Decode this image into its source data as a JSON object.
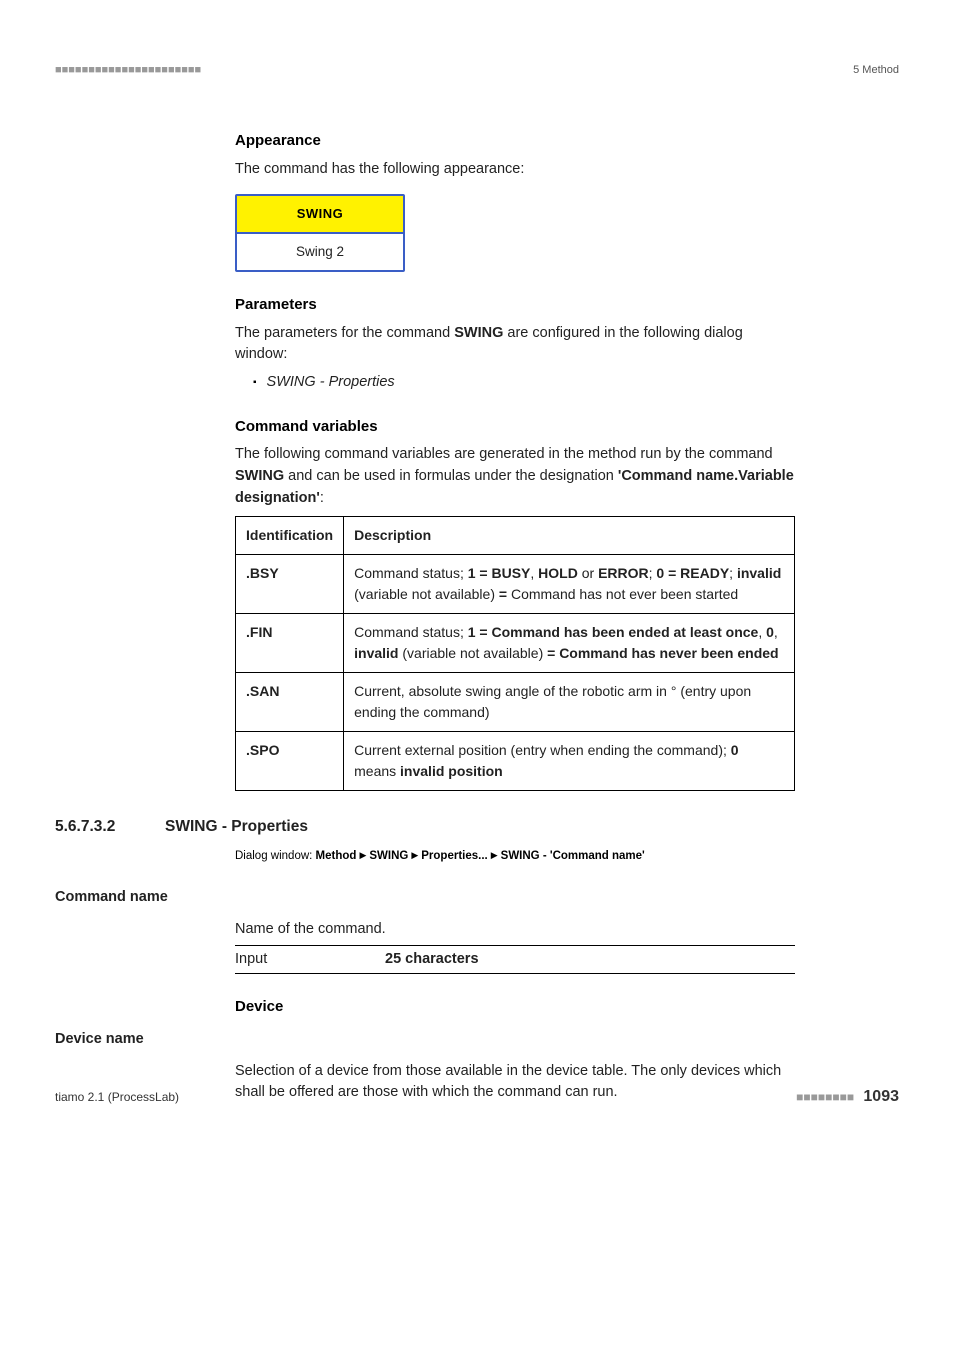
{
  "header": {
    "right": "5 Method"
  },
  "appearance": {
    "title": "Appearance",
    "text": "The command has the following appearance:",
    "swing_top": "SWING",
    "swing_bottom": "Swing 2"
  },
  "parameters": {
    "title": "Parameters",
    "text_a": "The parameters for the command ",
    "text_bold": "SWING",
    "text_b": " are configured in the following dialog window:",
    "bullet": "SWING - Properties"
  },
  "cmdvars": {
    "title": "Command variables",
    "intro_a": "The following command variables are generated in the method run by the command ",
    "intro_bold": "SWING",
    "intro_b": " and can be used in formulas under the designation ",
    "intro_strong": "'Command name.Variable designation'",
    "col1": "Identification",
    "col2": "Description",
    "rows": [
      {
        "id": ".BSY",
        "desc": "Command status; <b>1 = BUSY</b>, <b>HOLD</b> or <b>ERROR</b>; <b>0 = READY</b>; <b>invalid</b> (variable not available) <b>=</b> Command has not ever been started"
      },
      {
        "id": ".FIN",
        "desc": "Command status; <b>1 = Command has been ended at least once</b>, <b>0</b>, <b>invalid</b> (variable not available) <b>= Command has never been ended</b>"
      },
      {
        "id": ".SAN",
        "desc": "Current, absolute swing angle of the robotic arm in ° (entry upon ending the command)"
      },
      {
        "id": ".SPO",
        "desc": "Current external position (entry when ending the command); <b>0</b> means <b>invalid position</b>"
      }
    ]
  },
  "section": {
    "num": "5.6.7.3.2",
    "title": "SWING - Properties",
    "dialog_prefix": "Dialog window: ",
    "dialog_parts": [
      "Method",
      "SWING",
      "Properties...",
      "SWING - 'Command name'"
    ]
  },
  "cmdname": {
    "label": "Command name",
    "text": "Name of the command.",
    "input_label": "Input",
    "input_value": "25 characters"
  },
  "device": {
    "title": "Device",
    "label": "Device name",
    "text": "Selection of a device from those available in the device table. The only devices which shall be offered are those with which the command can run."
  },
  "footer": {
    "left": "tiamo 2.1 (ProcessLab)",
    "page": "1093"
  }
}
